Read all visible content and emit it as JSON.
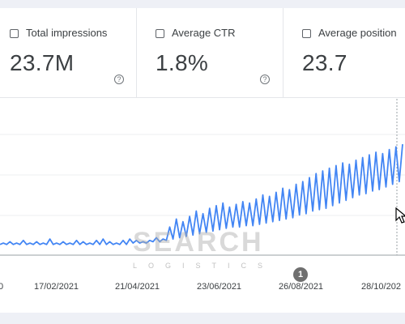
{
  "metrics": [
    {
      "label": "Total impressions",
      "value": "23.7M",
      "help": "?"
    },
    {
      "label": "Average CTR",
      "value": "1.8%",
      "help": "?"
    },
    {
      "label": "Average position",
      "value": "23.7"
    }
  ],
  "watermark": {
    "title": "SEARCH",
    "subtitle": "LOGISTICS"
  },
  "annotation_marker": "1",
  "chart_data": {
    "type": "line",
    "x_ticks": [
      "0",
      "17/02/2021",
      "21/04/2021",
      "23/06/2021",
      "26/08/2021",
      "28/10/202"
    ],
    "series": [
      {
        "color": "#4285f4",
        "y_relative": [
          0.05,
          0.06,
          0.05,
          0.07,
          0.05,
          0.06,
          0.05,
          0.08,
          0.05,
          0.06,
          0.05,
          0.07,
          0.05,
          0.06,
          0.05,
          0.09,
          0.05,
          0.06,
          0.05,
          0.07,
          0.05,
          0.06,
          0.05,
          0.08,
          0.05,
          0.07,
          0.05,
          0.06,
          0.05,
          0.08,
          0.05,
          0.09,
          0.05,
          0.07,
          0.05,
          0.06,
          0.05,
          0.08,
          0.05,
          0.09,
          0.06,
          0.08,
          0.06,
          0.07,
          0.06,
          0.08,
          0.07,
          0.1,
          0.07,
          0.09,
          0.08,
          0.18,
          0.09,
          0.24,
          0.1,
          0.22,
          0.11,
          0.26,
          0.12,
          0.3,
          0.13,
          0.28,
          0.14,
          0.32,
          0.15,
          0.34,
          0.16,
          0.36,
          0.17,
          0.33,
          0.18,
          0.35,
          0.18,
          0.37,
          0.19,
          0.36,
          0.19,
          0.39,
          0.2,
          0.42,
          0.21,
          0.41,
          0.22,
          0.44,
          0.23,
          0.47,
          0.24,
          0.46,
          0.25,
          0.5,
          0.27,
          0.52,
          0.28,
          0.55,
          0.3,
          0.58,
          0.31,
          0.6,
          0.32,
          0.62,
          0.34,
          0.64,
          0.36,
          0.66,
          0.38,
          0.65,
          0.4,
          0.68,
          0.42,
          0.7,
          0.43,
          0.72,
          0.45,
          0.74,
          0.46,
          0.73,
          0.48,
          0.76,
          0.5,
          0.78,
          0.52,
          0.8
        ]
      }
    ]
  }
}
